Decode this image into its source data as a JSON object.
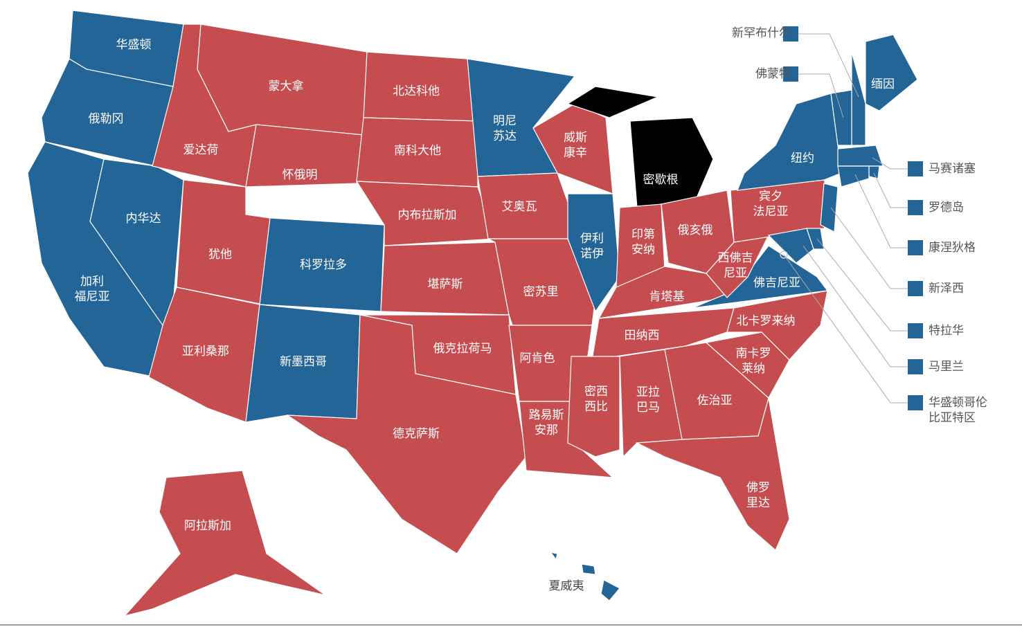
{
  "states": [
    {
      "name": [
        "华盛顿"
      ],
      "color": "#236597"
    },
    {
      "name": [
        "俄勒冈"
      ],
      "color": "#236597"
    },
    {
      "name": [
        "加利",
        "福尼亚"
      ],
      "color": "#236597"
    },
    {
      "name": [
        "内华达"
      ],
      "color": "#236597"
    },
    {
      "name": [
        "爱达荷"
      ],
      "color": "#c64d4f"
    },
    {
      "name": [
        "蒙大拿"
      ],
      "color": "#c64d4f"
    },
    {
      "name": [
        "怀俄明"
      ],
      "color": "#c64d4f"
    },
    {
      "name": [
        "犹他"
      ],
      "color": "#c64d4f"
    },
    {
      "name": [
        "科罗拉多"
      ],
      "color": "#236597"
    },
    {
      "name": [
        "亚利桑那"
      ],
      "color": "#c64d4f"
    },
    {
      "name": [
        "新墨西哥"
      ],
      "color": "#236597"
    },
    {
      "name": [
        "北达科他"
      ],
      "color": "#c64d4f"
    },
    {
      "name": [
        "南科大他"
      ],
      "color": "#c64d4f"
    },
    {
      "name": [
        "内布拉斯加"
      ],
      "color": "#c64d4f"
    },
    {
      "name": [
        "堪萨斯"
      ],
      "color": "#c64d4f"
    },
    {
      "name": [
        "俄克拉荷马"
      ],
      "color": "#c64d4f"
    },
    {
      "name": [
        "德克萨斯"
      ],
      "color": "#c64d4f"
    },
    {
      "name": [
        "明尼",
        "苏达"
      ],
      "color": "#236597"
    },
    {
      "name": [
        "艾奥瓦"
      ],
      "color": "#c64d4f"
    },
    {
      "name": [
        "密苏里"
      ],
      "color": "#c64d4f"
    },
    {
      "name": [
        "阿肯色"
      ],
      "color": "#c64d4f"
    },
    {
      "name": [
        "路易斯",
        "安那"
      ],
      "color": "#c64d4f"
    },
    {
      "name": [
        "威斯",
        "康辛"
      ],
      "color": "#c64d4f"
    },
    {
      "name": [
        "伊利",
        "诺伊"
      ],
      "color": "#236597"
    },
    {
      "name": [
        "密歇根"
      ],
      "color": "#000000"
    },
    {
      "name": [
        "印第",
        "安纳"
      ],
      "color": "#c64d4f"
    },
    {
      "name": [
        "俄亥俄"
      ],
      "color": "#c64d4f"
    },
    {
      "name": [
        "肯塔基"
      ],
      "color": "#c64d4f"
    },
    {
      "name": [
        "田纳西"
      ],
      "color": "#c64d4f"
    },
    {
      "name": [
        "密西",
        "西比"
      ],
      "color": "#c64d4f"
    },
    {
      "name": [
        "亚拉",
        "巴马"
      ],
      "color": "#c64d4f"
    },
    {
      "name": [
        "佐治亚"
      ],
      "color": "#c64d4f"
    },
    {
      "name": [
        "佛罗",
        "里达"
      ],
      "color": "#c64d4f"
    },
    {
      "name": [
        "南卡罗",
        "莱纳"
      ],
      "color": "#c64d4f"
    },
    {
      "name": [
        "北卡罗来纳"
      ],
      "color": "#c64d4f"
    },
    {
      "name": [
        "佛吉尼亚"
      ],
      "color": "#236597"
    },
    {
      "name": [
        "西佛吉",
        "尼亚"
      ],
      "color": "#c64d4f"
    },
    {
      "name": [
        "宾夕",
        "法尼亚"
      ],
      "color": "#c64d4f"
    },
    {
      "name": [
        "纽约"
      ],
      "color": "#236597"
    },
    {
      "name": [
        "缅因"
      ],
      "color": "#236597"
    },
    {
      "name": [
        "新罕布什尔"
      ],
      "color": "#236597"
    },
    {
      "name": [
        "佛蒙特"
      ],
      "color": "#236597"
    },
    {
      "name": [
        "马赛诸塞"
      ],
      "color": "#236597"
    },
    {
      "name": [
        "罗德岛"
      ],
      "color": "#236597"
    },
    {
      "name": [
        "康涅狄格"
      ],
      "color": "#236597"
    },
    {
      "name": [
        "新泽西"
      ],
      "color": "#236597"
    },
    {
      "name": [
        "特拉华"
      ],
      "color": "#236597"
    },
    {
      "name": [
        "马里兰"
      ],
      "color": "#236597"
    },
    {
      "name": [
        "华盛顿哥伦",
        "比亚特区"
      ],
      "color": "#236597"
    },
    {
      "name": [
        "阿拉斯加"
      ],
      "color": "#c64d4f"
    },
    {
      "name": [
        "夏威夷"
      ],
      "color": "#236597"
    }
  ]
}
